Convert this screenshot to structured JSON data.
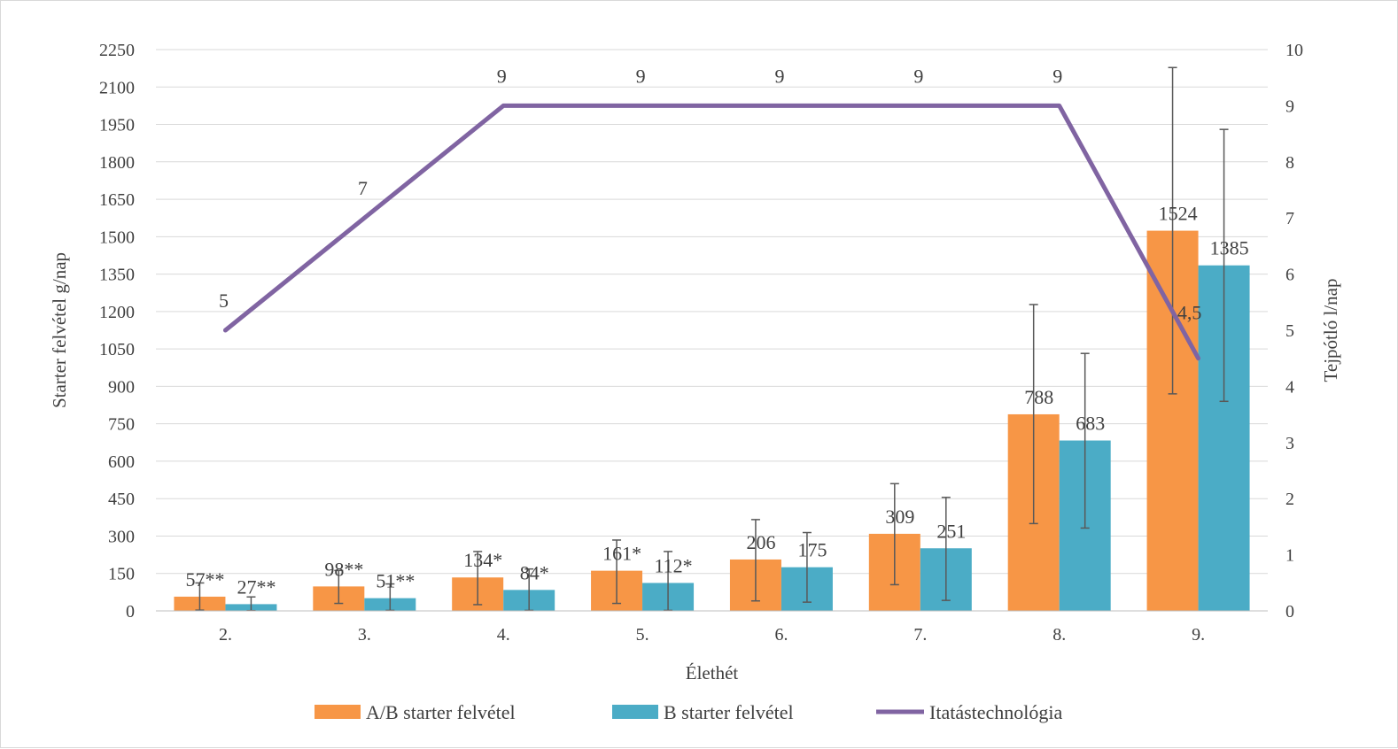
{
  "chart_data": {
    "type": "bar",
    "title": "",
    "xlabel": "Élethét",
    "ylabel": "Starter felvétel g/nap",
    "y2label": "Tejpótló l/nap",
    "categories": [
      "2.",
      "3.",
      "4.",
      "5.",
      "6.",
      "7.",
      "8.",
      "9."
    ],
    "ylim": [
      0,
      2250
    ],
    "yticks": [
      0,
      150,
      300,
      450,
      600,
      750,
      900,
      1050,
      1200,
      1350,
      1500,
      1650,
      1800,
      1950,
      2100,
      2250
    ],
    "y2lim": [
      0,
      10
    ],
    "y2ticks": [
      0,
      1,
      2,
      3,
      4,
      5,
      6,
      7,
      8,
      9,
      10
    ],
    "grid": true,
    "legend_position": "bottom",
    "series": [
      {
        "name": "A/B starter felvétel",
        "kind": "bar",
        "axis": "left",
        "color": "#F79646",
        "values": [
          57,
          98,
          134,
          161,
          206,
          309,
          788,
          1524
        ],
        "labels": [
          "57**",
          "98**",
          "134*",
          "161*",
          "206",
          "309",
          "788",
          "1524"
        ],
        "error_low": [
          3,
          30,
          25,
          30,
          40,
          105,
          350,
          870
        ],
        "error_high": [
          112,
          162,
          238,
          284,
          366,
          510,
          1228,
          2178
        ]
      },
      {
        "name": "B starter felvétel",
        "kind": "bar",
        "axis": "left",
        "color": "#4BACC6",
        "values": [
          27,
          51,
          84,
          112,
          175,
          251,
          683,
          1385
        ],
        "labels": [
          "27**",
          "51**",
          "84*",
          "112*",
          "175",
          "251",
          "683",
          "1385"
        ],
        "error_low": [
          1,
          2,
          2,
          2,
          35,
          42,
          332,
          840
        ],
        "error_high": [
          56,
          108,
          168,
          238,
          314,
          455,
          1032,
          1930
        ]
      },
      {
        "name": "Itatástechnológia",
        "kind": "line",
        "axis": "right",
        "color": "#8064A2",
        "values": [
          5,
          7,
          9,
          9,
          9,
          9,
          9,
          4.5
        ],
        "labels": [
          "5",
          "7",
          "9",
          "9",
          "9",
          "9",
          "9",
          "4,5"
        ]
      }
    ]
  }
}
